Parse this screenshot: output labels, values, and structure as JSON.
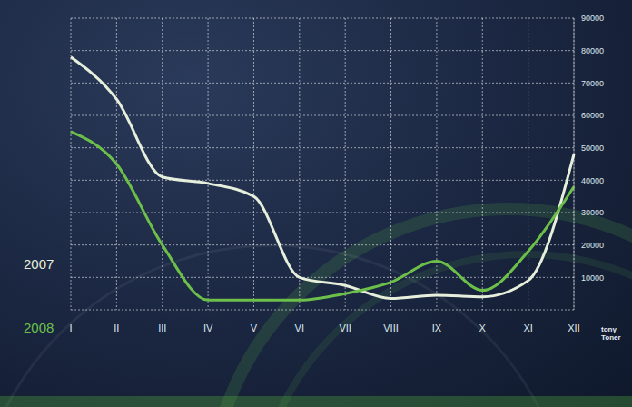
{
  "chart_data": {
    "type": "line",
    "y_label": "tony Toner",
    "categories": [
      "I",
      "II",
      "III",
      "IV",
      "V",
      "VI",
      "VII",
      "VIII",
      "IX",
      "X",
      "XI",
      "XII"
    ],
    "series": [
      {
        "name": "2007",
        "color": "#e6efdc",
        "values": [
          78000,
          65000,
          41000,
          39000,
          35000,
          10000,
          7500,
          3500,
          4500,
          4000,
          9000,
          48000
        ]
      },
      {
        "name": "2008",
        "color": "#6cc04a",
        "values": [
          55000,
          45000,
          20000,
          3000,
          3000,
          3000,
          5000,
          8500,
          15000,
          6000,
          18000,
          38000
        ]
      }
    ],
    "ylim": [
      0,
      90000
    ],
    "yticks": [
      10000,
      20000,
      30000,
      40000,
      50000,
      60000,
      70000,
      80000,
      90000
    ],
    "grid": true
  }
}
